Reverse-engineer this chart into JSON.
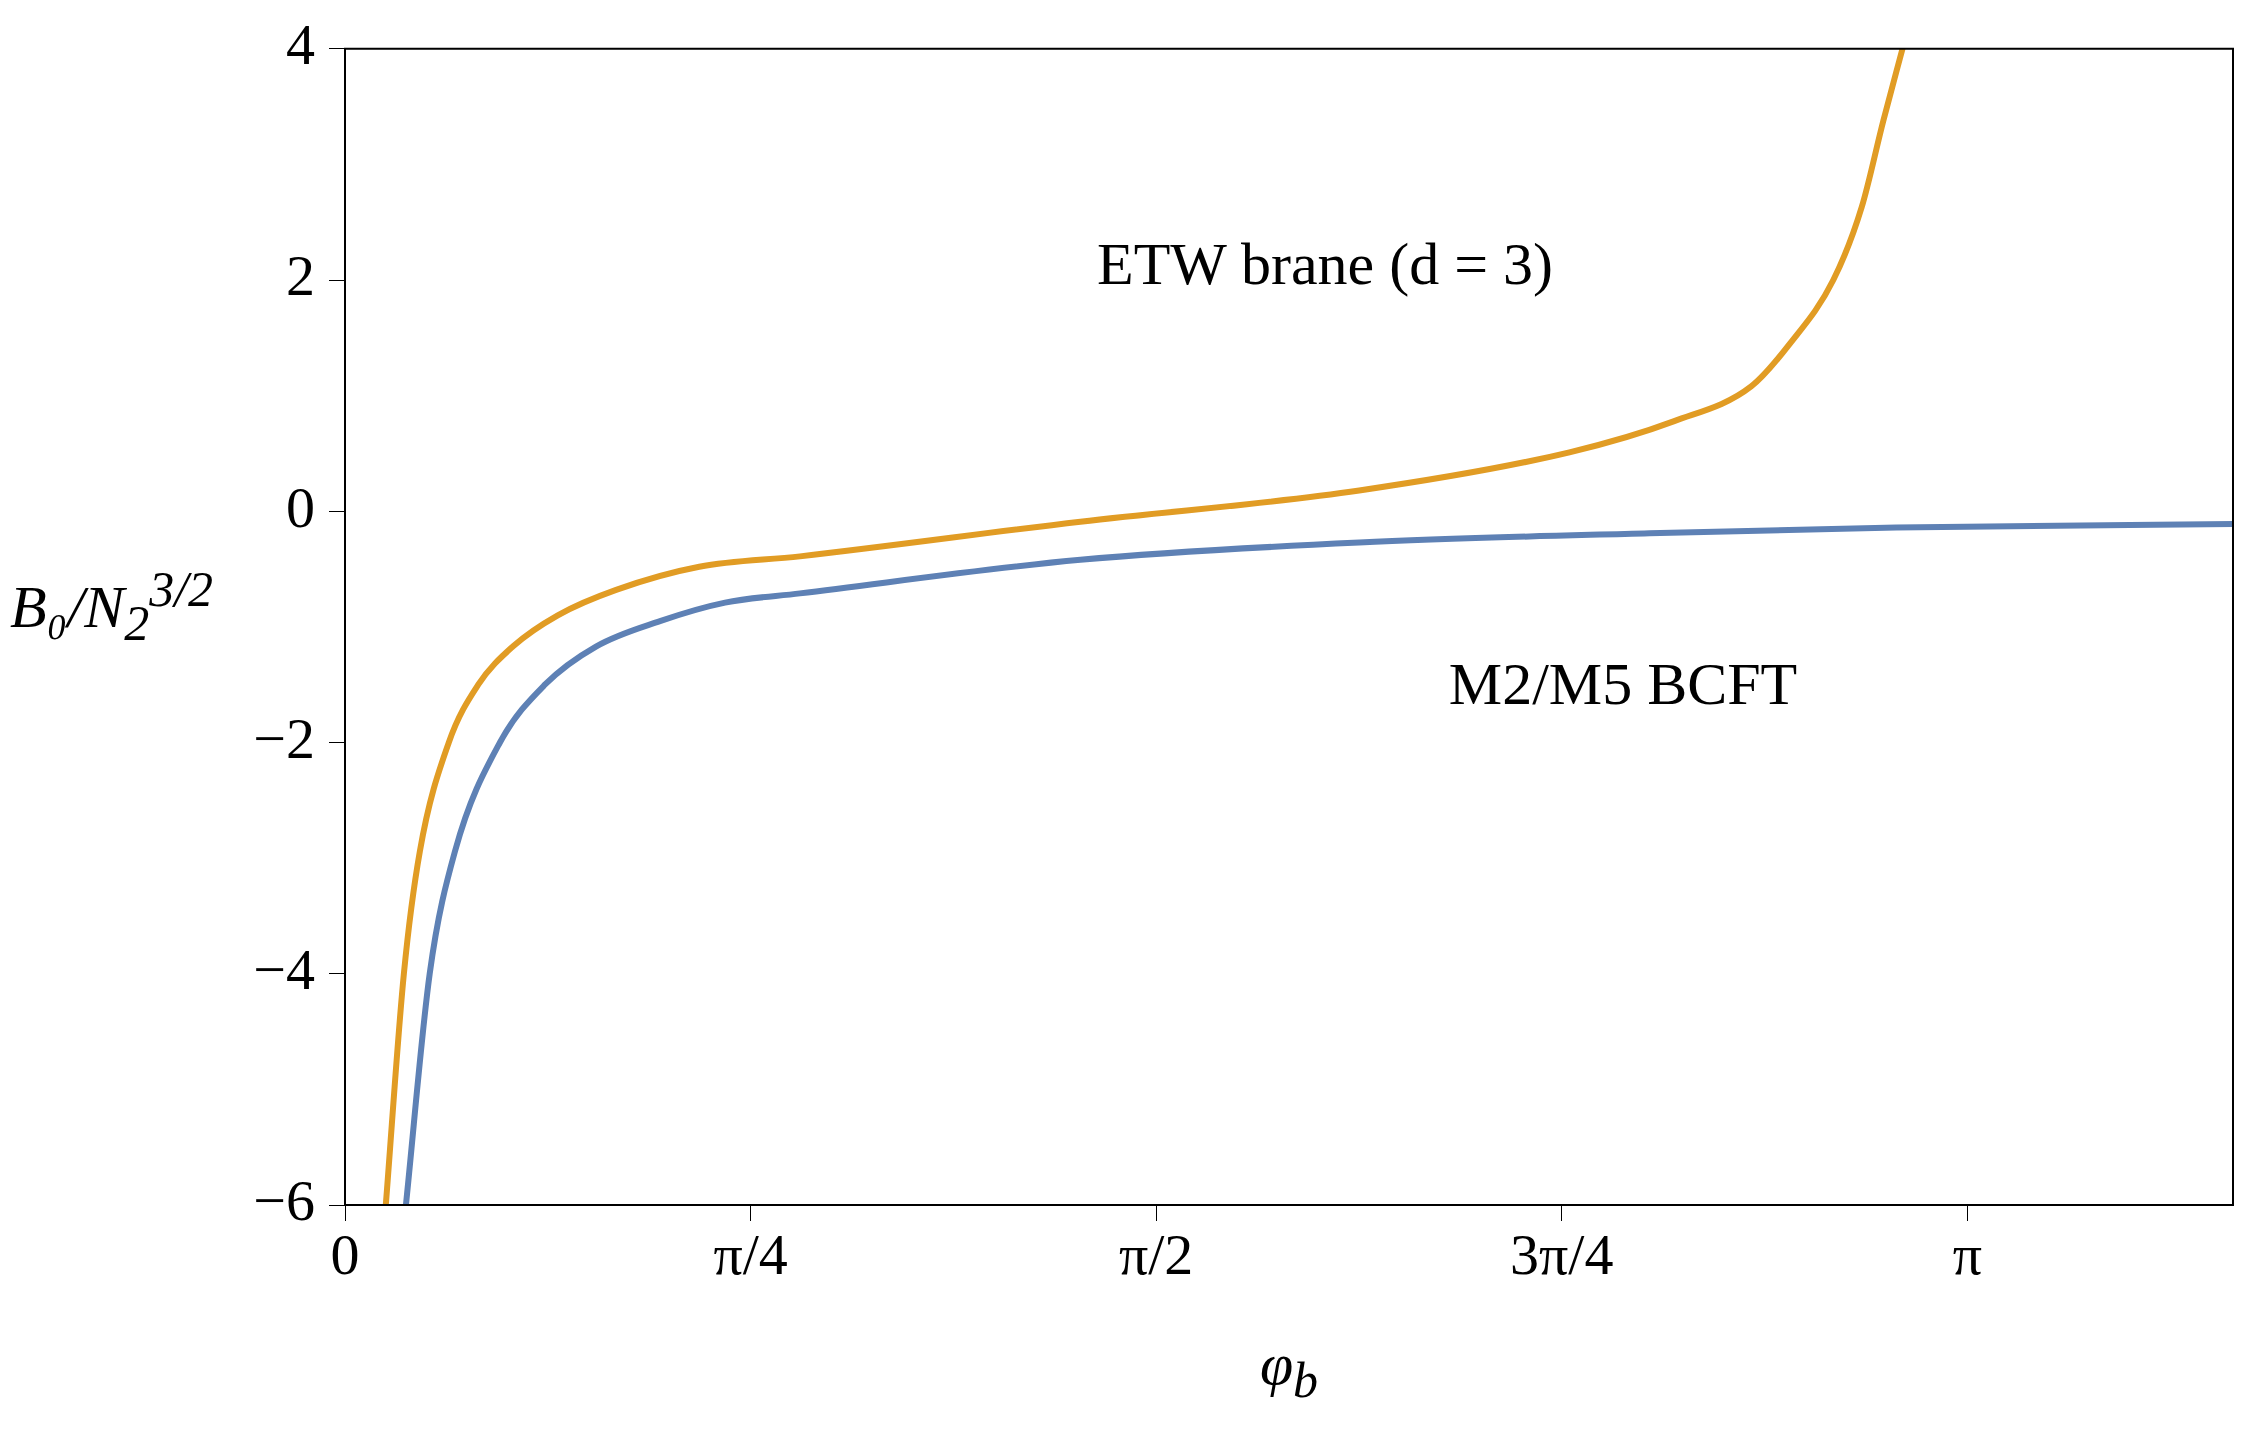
{
  "chart_data": {
    "type": "line",
    "xlabel": "φ$_{b}$",
    "ylabel": "B₀/N$_{2}$$^{3/2}$",
    "xlim": [
      0,
      3.656
    ],
    "ylim": [
      -6,
      4
    ],
    "xticks": [
      0,
      {
        "value": 0.7854,
        "label": "π/4"
      },
      {
        "value": 1.5708,
        "label": "π/2"
      },
      {
        "value": 2.3562,
        "label": "3π/4"
      },
      {
        "value": 3.1416,
        "label": "π"
      }
    ],
    "yticks": [
      {
        "value": -6,
        "label": "−6"
      },
      {
        "value": -4,
        "label": "−4"
      },
      {
        "value": -2,
        "label": "−2"
      },
      0,
      2,
      4
    ],
    "grid": false,
    "legend": false,
    "marker": "none",
    "line_style": "solid",
    "series": [
      {
        "name": "ETW brane (d = 3)",
        "color": "#e19c24",
        "x": [
          0.079,
          0.114,
          0.145,
          0.201,
          0.258,
          0.325,
          0.412,
          0.525,
          0.686,
          0.881,
          1.424,
          1.964,
          2.371,
          2.574,
          2.723,
          2.798,
          2.882,
          2.937,
          2.979,
          3.016
        ],
        "values": [
          -6,
          -4,
          -2.94,
          -2,
          -1.5,
          -1.17,
          -0.9,
          -0.68,
          -0.48,
          -0.39,
          -0.09,
          0.18,
          0.51,
          0.78,
          1.08,
          1.45,
          2.0,
          2.63,
          3.38,
          4
        ]
      },
      {
        "name": "M2/M5 BCFT",
        "color": "#5e81b5",
        "x": [
          0.118,
          0.164,
          0.213,
          0.3,
          0.387,
          0.486,
          0.61,
          0.736,
          0.881,
          1.424,
          1.964,
          2.526,
          3.004,
          3.656
        ],
        "values": [
          -6,
          -4,
          -2.94,
          -2,
          -1.5,
          -1.17,
          -0.95,
          -0.79,
          -0.71,
          -0.42,
          -0.27,
          -0.19,
          -0.14,
          -0.11
        ]
      }
    ]
  }
}
